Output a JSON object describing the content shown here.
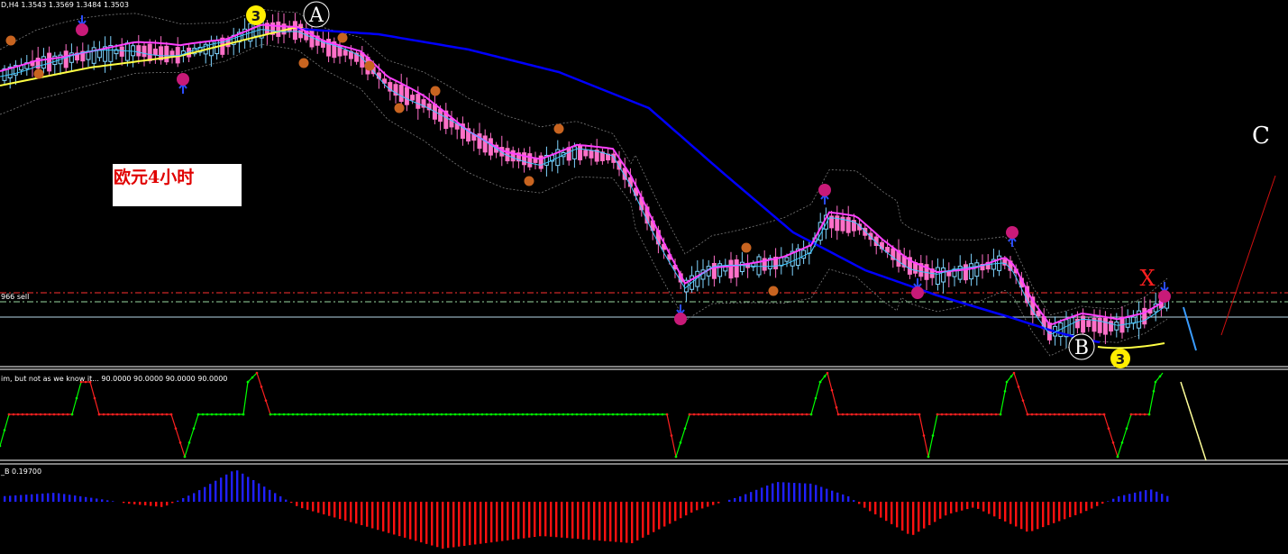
{
  "header": {
    "symbol_line": "D,H4  1.3543 1.3569 1.3484 1.3503",
    "sell_label": "966 sell",
    "osc1_label": "im, but not as we know it...  90.0000 90.0000 90.0000 90.0000",
    "osc2_label": "_B  0.19700"
  },
  "annotation": {
    "title_cn": "欧元4小时"
  },
  "wave_labels": {
    "a": "A",
    "b": "B",
    "c": "C",
    "x": "X",
    "three": "3"
  },
  "colors": {
    "background": "#000000",
    "bull_candle": "#7fd4ff",
    "bear_candle": "#ff70c8",
    "ma_fast": "#3fc8ff",
    "ma_mid": "#ff40ff",
    "ma_slow": "#0000ff",
    "ma_yellow": "#ffff44",
    "osc_up": "#00ff00",
    "osc_down": "#ff2020",
    "hist_pos": "#2020ff",
    "hist_neg": "#ff1010"
  },
  "chart_data": [
    {
      "type": "line",
      "panel": "price",
      "title": "D,H4  1.3543 1.3569 1.3484 1.3503",
      "last_bar": {
        "open": 1.3543,
        "high": 1.3569,
        "low": 1.3484,
        "close": 1.3503
      },
      "series": [
        {
          "values": [
            0.74,
            0.8,
            0.83,
            0.84,
            0.83,
            0.82,
            0.8,
            0.78,
            0.74,
            0.66,
            0.6,
            0.55,
            0.49,
            0.44,
            0.38,
            0.29,
            0.2,
            0.21,
            0.25,
            0.26,
            0.24,
            0.21,
            0.14,
            0.12,
            0.1,
            0.09,
            0.12
          ]
        },
        {
          "values": [
            0.9,
            0.86,
            0.8,
            0.74,
            0.66,
            0.58,
            0.5,
            0.44,
            0.38,
            0.32,
            0.27,
            0.23,
            0.2,
            0.18,
            0.17,
            0.16
          ]
        }
      ]
    },
    {
      "type": "line",
      "panel": "oscillator",
      "title": "im, but not as we know it...  90.0000 90.0000 90.0000 90.0000",
      "values": [
        90,
        90,
        90,
        90
      ]
    },
    {
      "type": "bar",
      "panel": "histogram",
      "title": "_B  0.19700",
      "value": 0.197
    }
  ]
}
